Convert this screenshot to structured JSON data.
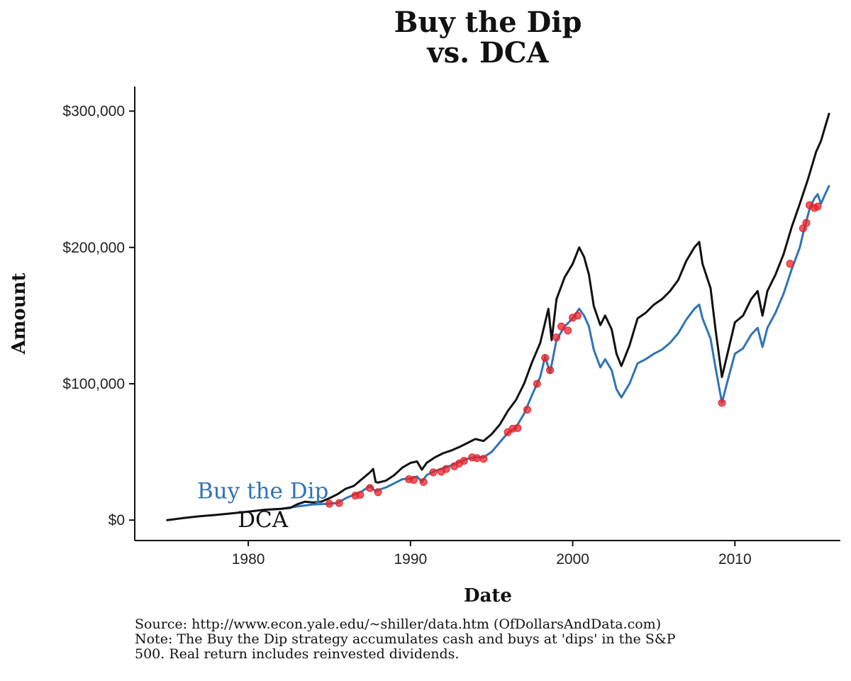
{
  "chart_data": {
    "type": "line",
    "title": [
      "Buy the Dip",
      "vs. DCA"
    ],
    "xlabel": "Date",
    "ylabel": "Amount",
    "xlim": [
      1973,
      2016.5
    ],
    "ylim": [
      -15000,
      318000
    ],
    "x_ticks": [
      {
        "value": 1980,
        "label": "1980"
      },
      {
        "value": 1990,
        "label": "1990"
      },
      {
        "value": 2000,
        "label": "2000"
      },
      {
        "value": 2010,
        "label": "2010"
      }
    ],
    "y_ticks": [
      {
        "value": 0,
        "label": "$0"
      },
      {
        "value": 100000,
        "label": "$100,000"
      },
      {
        "value": 200000,
        "label": "$200,000"
      },
      {
        "value": 300000,
        "label": "$300,000"
      }
    ],
    "grid": false,
    "series": [
      {
        "name": "DCA",
        "label": "DCA",
        "color": "#111111",
        "points": [
          [
            1975.0,
            0
          ],
          [
            1976.0,
            1500
          ],
          [
            1977.0,
            2800
          ],
          [
            1978.0,
            3800
          ],
          [
            1979.0,
            5000
          ],
          [
            1980.0,
            6200
          ],
          [
            1981.0,
            7600
          ],
          [
            1982.0,
            8200
          ],
          [
            1982.6,
            9000
          ],
          [
            1983.0,
            11500
          ],
          [
            1983.5,
            13500
          ],
          [
            1984.0,
            13000
          ],
          [
            1984.5,
            13500
          ],
          [
            1985.0,
            16000
          ],
          [
            1985.5,
            19000
          ],
          [
            1986.0,
            23000
          ],
          [
            1986.5,
            25000
          ],
          [
            1987.0,
            30000
          ],
          [
            1987.5,
            35000
          ],
          [
            1987.7,
            37500
          ],
          [
            1987.85,
            28000
          ],
          [
            1988.0,
            27500
          ],
          [
            1988.5,
            29000
          ],
          [
            1989.0,
            33000
          ],
          [
            1989.5,
            38500
          ],
          [
            1990.0,
            42000
          ],
          [
            1990.4,
            43000
          ],
          [
            1990.7,
            37000
          ],
          [
            1991.0,
            42000
          ],
          [
            1991.5,
            46000
          ],
          [
            1992.0,
            49000
          ],
          [
            1992.5,
            51000
          ],
          [
            1993.0,
            53500
          ],
          [
            1993.5,
            56500
          ],
          [
            1994.0,
            59500
          ],
          [
            1994.5,
            58000
          ],
          [
            1995.0,
            63000
          ],
          [
            1995.5,
            70000
          ],
          [
            1996.0,
            80000
          ],
          [
            1996.5,
            88000
          ],
          [
            1997.0,
            100000
          ],
          [
            1997.5,
            116000
          ],
          [
            1998.0,
            130000
          ],
          [
            1998.5,
            155000
          ],
          [
            1998.7,
            132000
          ],
          [
            1999.0,
            162000
          ],
          [
            1999.5,
            178000
          ],
          [
            2000.0,
            188000
          ],
          [
            2000.4,
            200000
          ],
          [
            2000.7,
            193000
          ],
          [
            2001.0,
            180000
          ],
          [
            2001.3,
            157000
          ],
          [
            2001.7,
            143000
          ],
          [
            2002.0,
            150000
          ],
          [
            2002.4,
            140000
          ],
          [
            2002.7,
            122000
          ],
          [
            2003.0,
            113000
          ],
          [
            2003.5,
            128000
          ],
          [
            2004.0,
            148000
          ],
          [
            2004.5,
            152000
          ],
          [
            2005.0,
            158000
          ],
          [
            2005.5,
            162000
          ],
          [
            2006.0,
            168000
          ],
          [
            2006.5,
            176000
          ],
          [
            2007.0,
            190000
          ],
          [
            2007.5,
            200000
          ],
          [
            2007.8,
            204000
          ],
          [
            2008.0,
            188000
          ],
          [
            2008.5,
            170000
          ],
          [
            2008.8,
            140000
          ],
          [
            2009.2,
            105000
          ],
          [
            2009.5,
            120000
          ],
          [
            2010.0,
            145000
          ],
          [
            2010.5,
            150000
          ],
          [
            2011.0,
            162000
          ],
          [
            2011.4,
            168000
          ],
          [
            2011.7,
            150000
          ],
          [
            2012.0,
            168000
          ],
          [
            2012.5,
            180000
          ],
          [
            2013.0,
            195000
          ],
          [
            2013.5,
            215000
          ],
          [
            2014.0,
            232000
          ],
          [
            2014.5,
            250000
          ],
          [
            2015.0,
            270000
          ],
          [
            2015.3,
            278000
          ],
          [
            2015.6,
            290000
          ],
          [
            2015.8,
            298000
          ]
        ]
      },
      {
        "name": "Buy the Dip",
        "label": "Buy the Dip",
        "color": "#2f74b5",
        "points": [
          [
            1981.0,
            7500
          ],
          [
            1982.0,
            8300
          ],
          [
            1983.0,
            10000
          ],
          [
            1984.0,
            11500
          ],
          [
            1985.0,
            12000
          ],
          [
            1985.5,
            12500
          ],
          [
            1986.0,
            16000
          ],
          [
            1986.5,
            18500
          ],
          [
            1987.0,
            21000
          ],
          [
            1987.5,
            25000
          ],
          [
            1987.85,
            21000
          ],
          [
            1988.0,
            22000
          ],
          [
            1988.5,
            24000
          ],
          [
            1989.0,
            27000
          ],
          [
            1989.5,
            30000
          ],
          [
            1990.0,
            30500
          ],
          [
            1990.4,
            32000
          ],
          [
            1990.7,
            28000
          ],
          [
            1991.0,
            33000
          ],
          [
            1991.5,
            36000
          ],
          [
            1992.0,
            38000
          ],
          [
            1992.5,
            40000
          ],
          [
            1993.0,
            42500
          ],
          [
            1993.5,
            45000
          ],
          [
            1994.0,
            46000
          ],
          [
            1994.5,
            46000
          ],
          [
            1995.0,
            50000
          ],
          [
            1995.5,
            57000
          ],
          [
            1996.0,
            64000
          ],
          [
            1996.5,
            68000
          ],
          [
            1997.0,
            78000
          ],
          [
            1997.5,
            92000
          ],
          [
            1998.0,
            105000
          ],
          [
            1998.3,
            120000
          ],
          [
            1998.6,
            108000
          ],
          [
            1999.0,
            132000
          ],
          [
            1999.5,
            142000
          ],
          [
            2000.0,
            148000
          ],
          [
            2000.4,
            155000
          ],
          [
            2000.7,
            150000
          ],
          [
            2001.0,
            142000
          ],
          [
            2001.3,
            125000
          ],
          [
            2001.7,
            112000
          ],
          [
            2002.0,
            118000
          ],
          [
            2002.4,
            110000
          ],
          [
            2002.7,
            96000
          ],
          [
            2003.0,
            90000
          ],
          [
            2003.5,
            100000
          ],
          [
            2004.0,
            115000
          ],
          [
            2004.5,
            118000
          ],
          [
            2005.0,
            122000
          ],
          [
            2005.5,
            125000
          ],
          [
            2006.0,
            130000
          ],
          [
            2006.5,
            137000
          ],
          [
            2007.0,
            147000
          ],
          [
            2007.5,
            155000
          ],
          [
            2007.8,
            158000
          ],
          [
            2008.0,
            148000
          ],
          [
            2008.5,
            133000
          ],
          [
            2008.8,
            112000
          ],
          [
            2009.2,
            86000
          ],
          [
            2009.5,
            100000
          ],
          [
            2010.0,
            122000
          ],
          [
            2010.5,
            126000
          ],
          [
            2011.0,
            136000
          ],
          [
            2011.4,
            141000
          ],
          [
            2011.7,
            127000
          ],
          [
            2012.0,
            141000
          ],
          [
            2012.5,
            152000
          ],
          [
            2013.0,
            166000
          ],
          [
            2013.5,
            184000
          ],
          [
            2014.0,
            200000
          ],
          [
            2014.3,
            215000
          ],
          [
            2014.6,
            228000
          ],
          [
            2014.9,
            236000
          ],
          [
            2015.1,
            239000
          ],
          [
            2015.3,
            232000
          ],
          [
            2015.6,
            240000
          ],
          [
            2015.8,
            245000
          ]
        ]
      }
    ],
    "dip_buys": {
      "name": "Buy points",
      "color": "#e8232a",
      "points": [
        [
          1985.0,
          12000
        ],
        [
          1985.6,
          12500
        ],
        [
          1986.6,
          18000
        ],
        [
          1986.9,
          18500
        ],
        [
          1987.5,
          23500
        ],
        [
          1988.0,
          20500
        ],
        [
          1989.9,
          30000
        ],
        [
          1990.2,
          29500
        ],
        [
          1990.8,
          28000
        ],
        [
          1991.4,
          35000
        ],
        [
          1991.9,
          35500
        ],
        [
          1992.2,
          37500
        ],
        [
          1992.7,
          39500
        ],
        [
          1993.0,
          41500
        ],
        [
          1993.3,
          43500
        ],
        [
          1993.8,
          46000
        ],
        [
          1994.1,
          45500
        ],
        [
          1994.5,
          45000
        ],
        [
          1996.0,
          64500
        ],
        [
          1996.3,
          67000
        ],
        [
          1996.6,
          67500
        ],
        [
          1997.2,
          81000
        ],
        [
          1997.8,
          100000
        ],
        [
          1998.3,
          119000
        ],
        [
          1998.6,
          110000
        ],
        [
          1999.0,
          134000
        ],
        [
          1999.3,
          142000
        ],
        [
          1999.7,
          139000
        ],
        [
          2000.0,
          148500
        ],
        [
          2000.3,
          150000
        ],
        [
          2009.2,
          86000
        ],
        [
          2013.4,
          188000
        ],
        [
          2014.2,
          214000
        ],
        [
          2014.4,
          218000
        ],
        [
          2014.6,
          231000
        ],
        [
          2014.9,
          229000
        ],
        [
          2015.1,
          230000
        ]
      ]
    },
    "annotations": [
      {
        "text": "Buy the Dip",
        "x": 1980.9,
        "y": 16000,
        "color": "#2f74b5"
      },
      {
        "text": "DCA",
        "x": 1980.9,
        "y": -5000,
        "color": "#111111"
      }
    ]
  },
  "caption": {
    "line1": "Source:  http://www.econ.yale.edu/~shiller/data.htm (OfDollarsAndData.com)",
    "line2": "Note: The Buy the Dip strategy accumulates cash and buys at 'dips' in the S&P",
    "line3": "500. Real return includes reinvested dividends."
  }
}
